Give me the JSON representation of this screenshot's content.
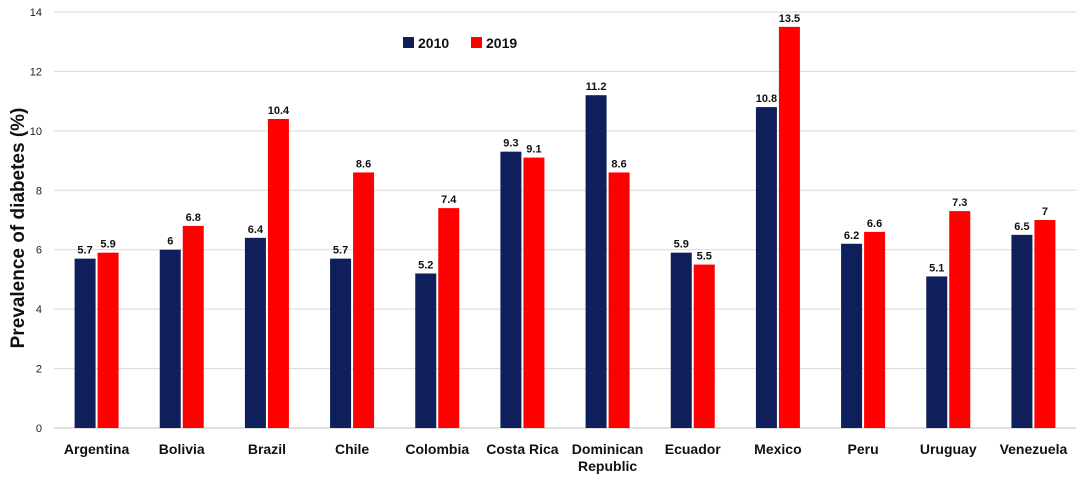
{
  "chart_data": {
    "type": "bar",
    "title": "",
    "xlabel": "",
    "ylabel": "Prevalence of diabetes (%)",
    "ylim": [
      0,
      14
    ],
    "yticks": [
      0,
      2,
      4,
      6,
      8,
      10,
      12,
      14
    ],
    "grid": true,
    "legend_position": "top-center",
    "categories": [
      [
        "Argentina"
      ],
      [
        "Bolivia"
      ],
      [
        "Brazil"
      ],
      [
        "Chile"
      ],
      [
        "Colombia"
      ],
      [
        "Costa Rica"
      ],
      [
        "Dominican",
        "Republic"
      ],
      [
        "Ecuador"
      ],
      [
        "Mexico"
      ],
      [
        "Peru"
      ],
      [
        "Uruguay"
      ],
      [
        "Venezuela"
      ]
    ],
    "series": [
      {
        "name": "2010",
        "color": "#0e1f5c",
        "values": [
          5.7,
          6,
          6.4,
          5.7,
          5.2,
          9.3,
          11.2,
          5.9,
          10.8,
          6.2,
          5.1,
          6.5
        ],
        "labels": [
          "5.7",
          "6",
          "6.4",
          "5.7",
          "5.2",
          "9.3",
          "11.2",
          "5.9",
          "10.8",
          "6.2",
          "5.1",
          "6.5"
        ]
      },
      {
        "name": "2019",
        "color": "#ff0000",
        "values": [
          5.9,
          6.8,
          10.4,
          8.6,
          7.4,
          9.1,
          8.6,
          5.5,
          13.5,
          6.6,
          7.3,
          7
        ],
        "labels": [
          "5.9",
          "6.8",
          "10.4",
          "8.6",
          "7.4",
          "9.1",
          "8.6",
          "5.5",
          "13.5",
          "6.6",
          "7.3",
          "7"
        ]
      }
    ]
  }
}
